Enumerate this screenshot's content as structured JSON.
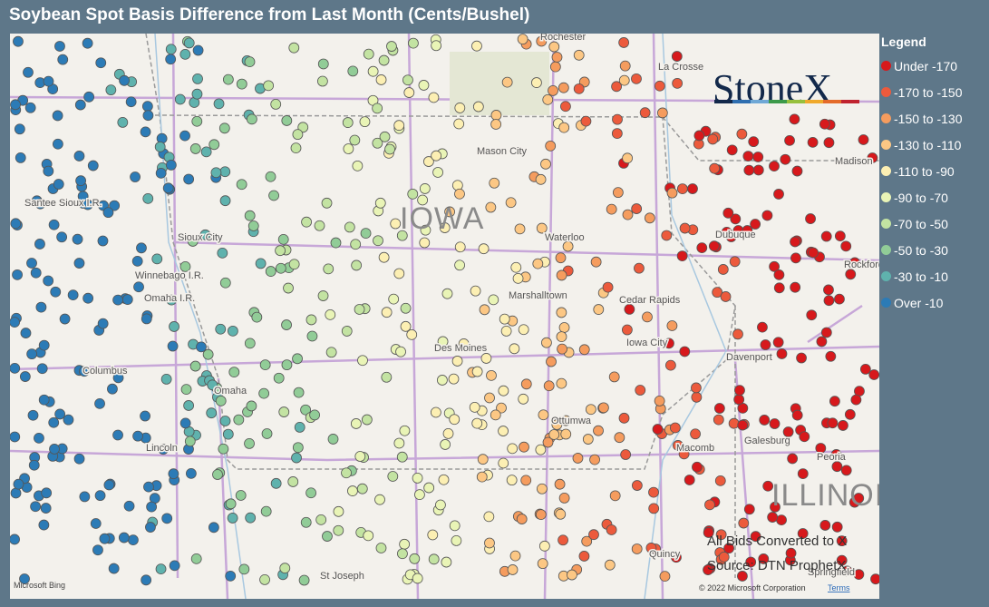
{
  "header": {
    "title": "Soybean Spot Basis Difference from Last Month (Cents/Bushel)"
  },
  "legend": {
    "title": "Legend",
    "items": [
      {
        "label": "Under -170",
        "color": "#d7191c"
      },
      {
        "label": "-170 to -150",
        "color": "#ec5a3c"
      },
      {
        "label": "-150 to -130",
        "color": "#f59c5e"
      },
      {
        "label": "-130 to -110",
        "color": "#fcc784"
      },
      {
        "label": "-110 to -90",
        "color": "#fcefb3"
      },
      {
        "label": "-90 to -70",
        "color": "#e9f4b6"
      },
      {
        "label": "-70 to -50",
        "color": "#c3e3a2"
      },
      {
        "label": "-50 to -30",
        "color": "#91cc97"
      },
      {
        "label": "-30 to -10",
        "color": "#5fb2ad"
      },
      {
        "label": "Over -10",
        "color": "#2c7bb6"
      }
    ]
  },
  "map": {
    "states": [
      "IOWA",
      "ILLINOIS"
    ],
    "cities": [
      "Rochester",
      "La Crosse",
      "Mason City",
      "Sioux City",
      "Waterloo",
      "Dubuque",
      "Madison",
      "Cedar Rapids",
      "Marshalltown",
      "Iowa City",
      "Des Moines",
      "Davenport",
      "Columbus",
      "Omaha",
      "Ottumwa",
      "Galesburg",
      "Peoria",
      "Lincoln",
      "St Joseph",
      "Springfield",
      "Quincy",
      "Macomb",
      "Winnebago I.R.",
      "Omaha I.R.",
      "Santee Sioux I.R.",
      "Rockford"
    ],
    "logo": "StoneX",
    "notes": [
      "All Bids Converted to X",
      "Source: DTN ProphetX"
    ],
    "attribution": "Microsoft Bing",
    "copyright": "© 2022 Microsoft Corporation",
    "terms": "Terms"
  }
}
